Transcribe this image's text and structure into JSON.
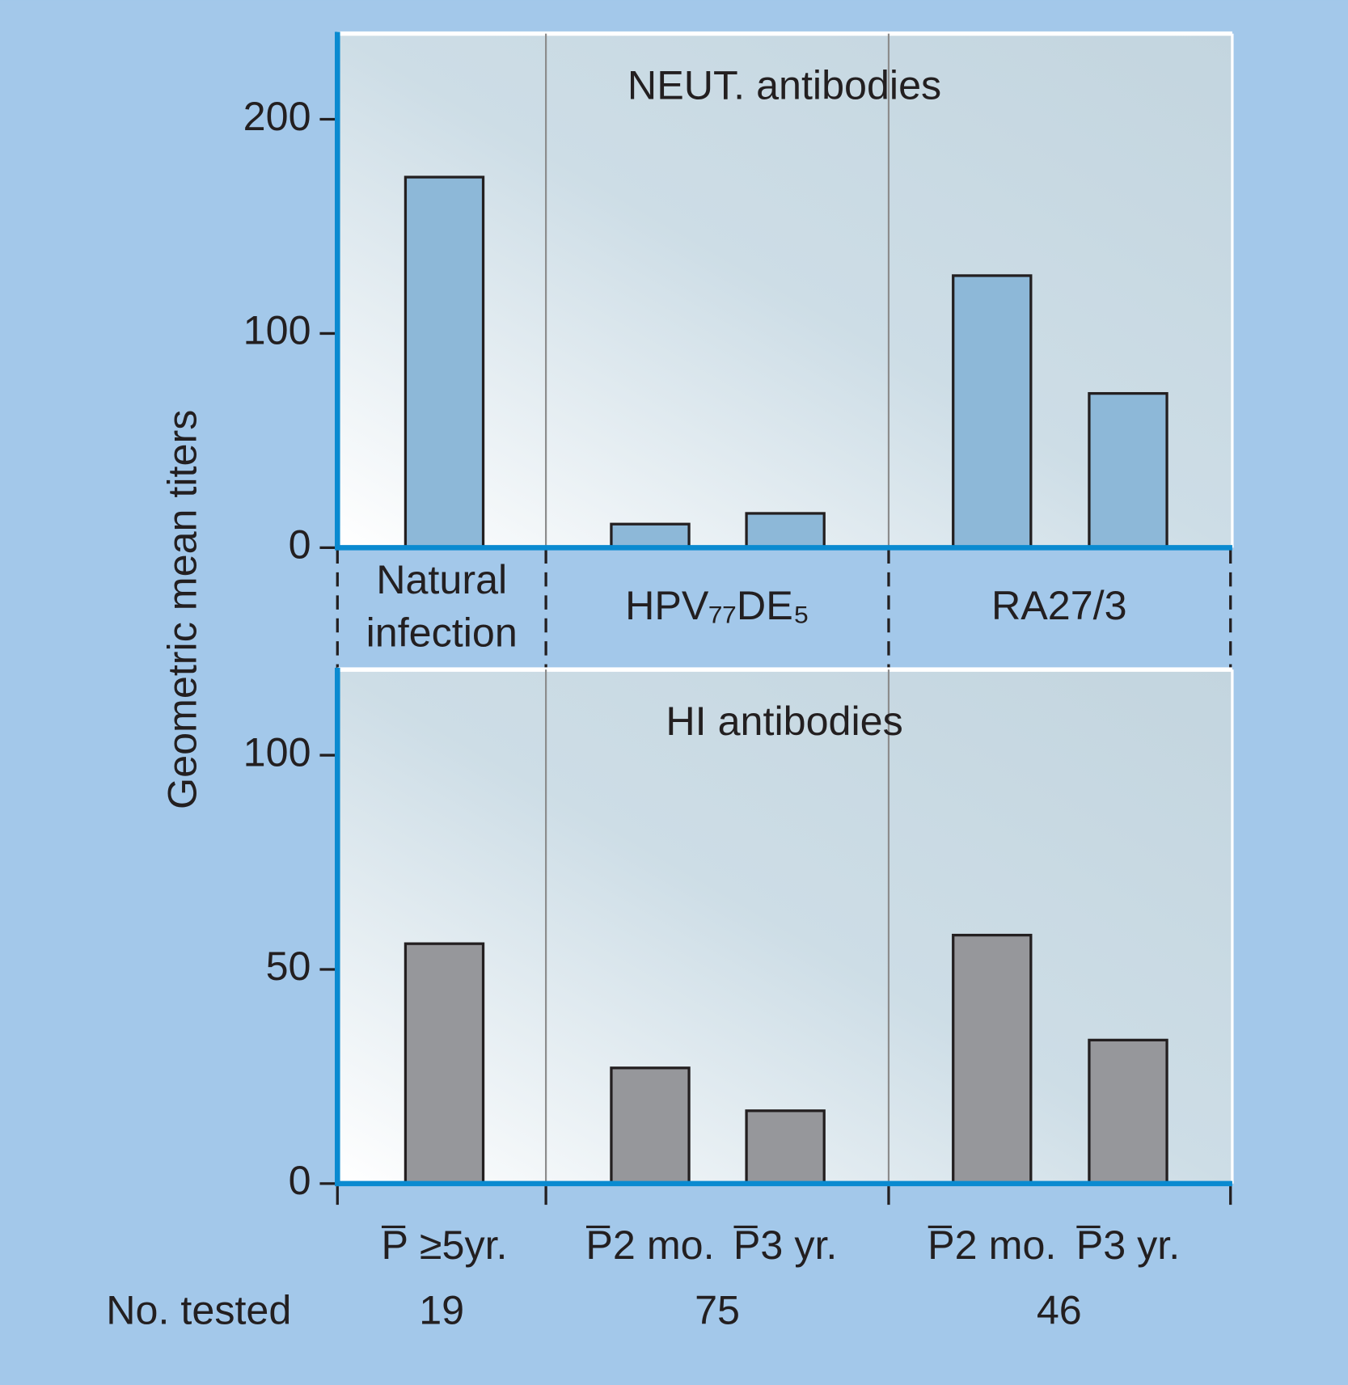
{
  "y_label": "Geometric mean titers",
  "groups": [
    "Natural infection",
    "HPV₇₇DE₅",
    "RA27/3"
  ],
  "no_tested_label": "No. tested",
  "no_tested": [
    19,
    75,
    46
  ],
  "chart_data": [
    {
      "type": "bar",
      "title": "NEUT. antibodies",
      "values": [
        173,
        11,
        16,
        127,
        72
      ],
      "color": "#8db8d8",
      "ylim": [
        0,
        240
      ],
      "yticks": [
        0,
        100,
        200
      ]
    },
    {
      "type": "bar",
      "title": "HI antibodies",
      "categories": [
        "P̅ ≥5yr.",
        "P̅2 mo.",
        "P̅3 yr.",
        "P̅2 mo.",
        "P̅3 yr."
      ],
      "values": [
        56,
        27,
        17,
        58,
        33.5
      ],
      "color": "#96979b",
      "ylim": [
        0,
        120
      ],
      "yticks": [
        0,
        50,
        100
      ]
    }
  ]
}
